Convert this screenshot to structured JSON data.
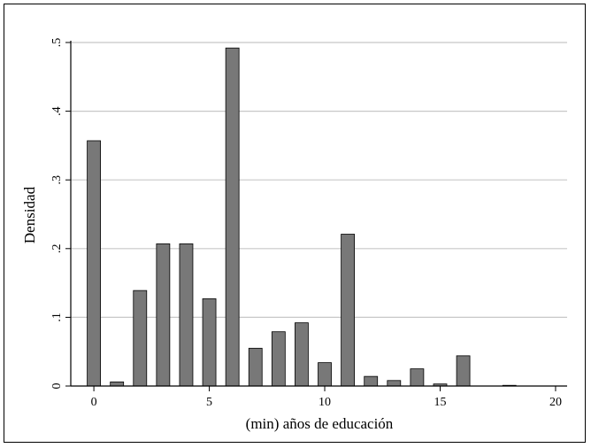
{
  "chart_data": {
    "type": "bar",
    "title": "",
    "xlabel": "(min) años de educación",
    "ylabel": "Densidad",
    "xlim": [
      -1,
      20.5
    ],
    "ylim": [
      0,
      0.5
    ],
    "x_ticks": [
      0,
      5,
      10,
      15,
      20
    ],
    "x_tick_labels": [
      "0",
      "5",
      "10",
      "15",
      "20"
    ],
    "y_ticks": [
      0,
      0.1,
      0.2,
      0.3,
      0.4,
      0.5
    ],
    "y_tick_labels": [
      "0",
      ".1",
      ".2",
      ".3",
      ".4",
      ".5"
    ],
    "grid": "horizontal",
    "bar_color": "#787878",
    "bars": [
      {
        "x": 0,
        "value": 0.357
      },
      {
        "x": 1,
        "value": 0.006
      },
      {
        "x": 2,
        "value": 0.139
      },
      {
        "x": 3,
        "value": 0.207
      },
      {
        "x": 4,
        "value": 0.207
      },
      {
        "x": 5,
        "value": 0.127
      },
      {
        "x": 6,
        "value": 0.492
      },
      {
        "x": 7,
        "value": 0.055
      },
      {
        "x": 8,
        "value": 0.079
      },
      {
        "x": 9,
        "value": 0.092
      },
      {
        "x": 10,
        "value": 0.034
      },
      {
        "x": 11,
        "value": 0.221
      },
      {
        "x": 12,
        "value": 0.014
      },
      {
        "x": 13,
        "value": 0.008
      },
      {
        "x": 14,
        "value": 0.025
      },
      {
        "x": 15,
        "value": 0.003
      },
      {
        "x": 16,
        "value": 0.044
      },
      {
        "x": 18,
        "value": 0.001
      }
    ]
  }
}
